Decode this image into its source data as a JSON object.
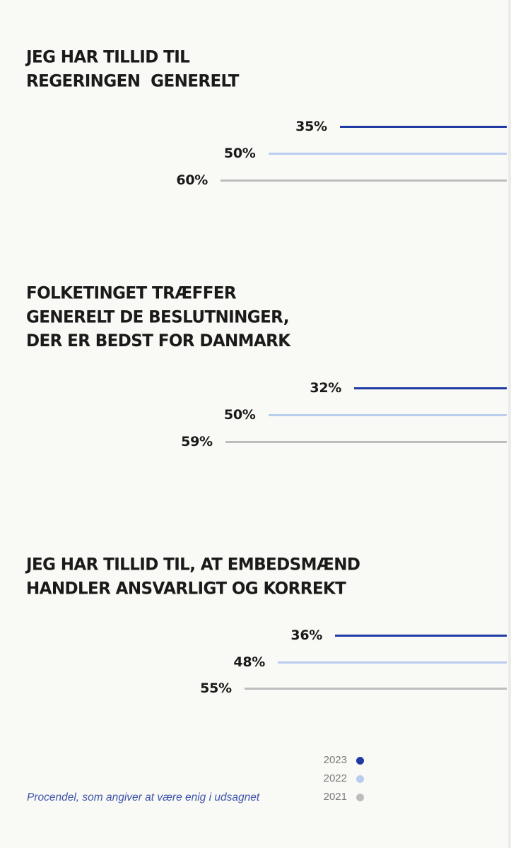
{
  "chart_data": {
    "type": "bar",
    "series_colors": {
      "2023": "#1f3aa3",
      "2022": "#b9cdef",
      "2021": "#bdbdbd"
    },
    "legend": {
      "placement": "bottom-right",
      "items": [
        {
          "year": "2023",
          "color": "#1f3aa3"
        },
        {
          "year": "2022",
          "color": "#b9cdef"
        },
        {
          "year": "2021",
          "color": "#bdbdbd"
        }
      ]
    },
    "footnote": "Procendel, som angiver at være enig i udsagnet",
    "panels": [
      {
        "title_lines": [
          "JEG HAR TILLID TIL",
          "REGERINGEN  GENERELT"
        ],
        "bars": [
          {
            "year": "2023",
            "value": 35,
            "label": "35%"
          },
          {
            "year": "2022",
            "value": 50,
            "label": "50%"
          },
          {
            "year": "2021",
            "value": 60,
            "label": "60%"
          }
        ]
      },
      {
        "title_lines": [
          "FOLKETINGET TRÆFFER",
          "GENERELT DE BESLUTNINGER,",
          "DER ER BEDST FOR DANMARK"
        ],
        "bars": [
          {
            "year": "2023",
            "value": 32,
            "label": "32%"
          },
          {
            "year": "2022",
            "value": 50,
            "label": "50%"
          },
          {
            "year": "2021",
            "value": 59,
            "label": "59%"
          }
        ]
      },
      {
        "title_lines": [
          "JEG HAR TILLID TIL, AT EMBEDSMÆND",
          "HANDLER ANSVARLIGT OG KORREKT"
        ],
        "bars": [
          {
            "year": "2023",
            "value": 36,
            "label": "36%"
          },
          {
            "year": "2022",
            "value": 48,
            "label": "48%"
          },
          {
            "year": "2021",
            "value": 55,
            "label": "55%"
          }
        ]
      }
    ]
  }
}
